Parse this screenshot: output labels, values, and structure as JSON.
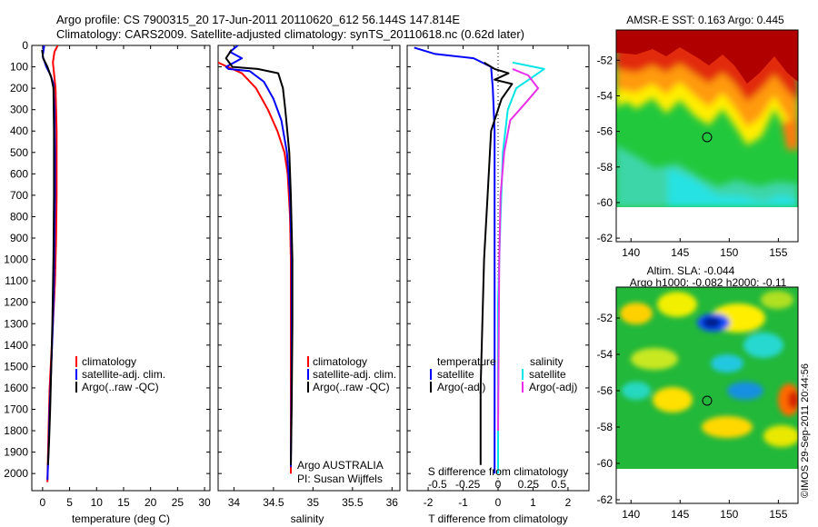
{
  "header": {
    "line1": "Argo profile: CS 7900315_20 17-Jun-2011 20110620_612 56.144S 147.814E",
    "line2": "Climatology: CARS2009. Satellite-adjusted climatology: synTS_20110618.nc (0.62d later)"
  },
  "side_credit": "©IMOS 29-Sep-2011 20:44:56",
  "colors": {
    "climatology": "#ff0000",
    "satellite": "#0000ff",
    "argo": "#000000",
    "sat_salinity": "#00e5e5",
    "argo_salinity": "#e830e8"
  },
  "chart_data": [
    {
      "id": "temperature",
      "type": "line",
      "xlabel": "temperature (deg C)",
      "ylabel": "",
      "xlim": [
        -2,
        31
      ],
      "ylim": [
        2080,
        0
      ],
      "xticks": [
        0,
        5,
        10,
        15,
        20,
        25,
        30
      ],
      "yticks": [
        0,
        100,
        200,
        300,
        400,
        500,
        600,
        700,
        800,
        900,
        1000,
        1100,
        1200,
        1300,
        1400,
        1500,
        1600,
        1700,
        1800,
        1900,
        2000
      ],
      "legend": {
        "placement": "lower-middle",
        "entries": [
          "climatology",
          "satellite-adj. clim.",
          "Argo(..raw -QC)"
        ]
      },
      "series": [
        {
          "name": "climatology",
          "color": "#ff0000",
          "x": [
            2.8,
            2.2,
            1.9,
            2.2,
            2.4,
            2.5,
            2.6,
            2.6,
            2.6,
            2.5,
            2.4,
            2.3,
            2.1,
            1.9,
            1.7,
            1.5,
            1.3,
            1.1,
            0.9
          ],
          "y": [
            0,
            30,
            80,
            150,
            200,
            300,
            400,
            500,
            700,
            900,
            1000,
            1100,
            1200,
            1300,
            1400,
            1500,
            1600,
            1800,
            2040
          ]
        },
        {
          "name": "satellite-adj. clim.",
          "color": "#0000ff",
          "x": [
            0.3,
            0.0,
            0.7,
            1.5,
            2.0,
            2.2,
            2.3,
            2.3,
            2.2,
            2.1,
            1.9,
            1.6,
            1.3,
            1.1,
            0.9
          ],
          "y": [
            0,
            50,
            100,
            140,
            180,
            300,
            500,
            700,
            900,
            1100,
            1300,
            1500,
            1700,
            1900,
            2030
          ]
        },
        {
          "name": "Argo(..raw -QC)",
          "color": "#000000",
          "x": [
            -0.1,
            0.1,
            0.9,
            1.6,
            2.0,
            2.1,
            2.1,
            2.0,
            1.8,
            1.6,
            1.4,
            1.2,
            1.0
          ],
          "y": [
            20,
            60,
            100,
            150,
            200,
            400,
            700,
            1000,
            1300,
            1500,
            1700,
            1850,
            1960
          ]
        }
      ]
    },
    {
      "id": "salinity",
      "type": "line",
      "xlabel": "salinity",
      "ylabel": "",
      "xlim": [
        33.8,
        36.1
      ],
      "ylim": [
        2080,
        0
      ],
      "xticks": [
        34,
        34.5,
        35,
        35.5,
        36
      ],
      "legend": {
        "placement": "lower-right",
        "entries": [
          "climatology",
          "satellite-adj. clim.",
          "Argo(..raw -QC)"
        ]
      },
      "annotation": [
        "Argo AUSTRALIA",
        "PI: Susan Wijffels"
      ],
      "series": [
        {
          "name": "climatology",
          "color": "#ff0000",
          "x": [
            33.8,
            33.92,
            34.1,
            34.28,
            34.43,
            34.55,
            34.64,
            34.68,
            34.71,
            34.72,
            34.72,
            34.72
          ],
          "y": [
            80,
            100,
            130,
            200,
            300,
            400,
            500,
            600,
            800,
            1000,
            1500,
            2000
          ]
        },
        {
          "name": "satellite-adj. clim.",
          "color": "#0000ff",
          "x": [
            34.05,
            33.95,
            34.1,
            33.9,
            33.93,
            34.2,
            34.38,
            34.5,
            34.6,
            34.67,
            34.71,
            34.73,
            34.73,
            34.72
          ],
          "y": [
            0,
            30,
            60,
            100,
            110,
            120,
            170,
            250,
            350,
            500,
            700,
            1000,
            1500,
            1970
          ]
        },
        {
          "name": "Argo(..raw -QC)",
          "color": "#000000",
          "x": [
            33.97,
            33.9,
            33.98,
            34.3,
            34.56,
            34.62,
            34.65,
            34.7,
            34.72,
            34.74,
            34.74,
            34.73,
            34.72
          ],
          "y": [
            20,
            60,
            100,
            110,
            130,
            200,
            300,
            500,
            700,
            1000,
            1300,
            1700,
            1960
          ]
        }
      ]
    },
    {
      "id": "differences",
      "type": "line",
      "xlabel": "T difference from climatology",
      "ylabel": "",
      "xlabel_top": "S difference from climatology",
      "xlim": [
        -2.6,
        2.6
      ],
      "ylim": [
        2080,
        0
      ],
      "xticks": [
        -2,
        -1,
        0,
        1,
        2
      ],
      "xticks_top": {
        "labels": [
          "-0.5",
          "-0.25",
          "0",
          "0.25",
          "0.5"
        ],
        "values": [
          -0.5,
          -0.25,
          0,
          0.25,
          0.5
        ]
      },
      "legend": {
        "placement": "lower-middle",
        "groups": [
          {
            "title": "temperature",
            "entries": [
              "satellite",
              "Argo(-adj)"
            ]
          },
          {
            "title": "salinity",
            "entries": [
              "satellite",
              "Argo(-adj)"
            ]
          }
        ]
      },
      "series": [
        {
          "name": "satellite",
          "group": "temperature",
          "color": "#0000ff",
          "x": [
            -2.4,
            -1.8,
            -0.7,
            -0.2,
            -0.15,
            -0.1,
            -0.1,
            -0.1,
            -0.1,
            -0.1
          ],
          "y": [
            10,
            40,
            60,
            100,
            200,
            400,
            700,
            1000,
            1500,
            2000
          ]
        },
        {
          "name": "Argo(-adj)",
          "group": "temperature",
          "color": "#000000",
          "x": [
            -0.4,
            -0.1,
            0.3,
            -0.1,
            0.4,
            0.1,
            -0.2,
            -0.3,
            -0.4,
            -0.45,
            -0.5,
            -0.5,
            -0.5
          ],
          "y": [
            80,
            110,
            130,
            160,
            180,
            250,
            400,
            700,
            1000,
            1300,
            1600,
            1800,
            1960
          ]
        },
        {
          "name": "satellite",
          "group": "salinity",
          "color": "#00e5e5",
          "x": [
            0.12,
            0.38,
            0.28,
            0.15,
            0.08,
            0.04,
            0.02,
            0.0,
            0.0
          ],
          "y": [
            80,
            110,
            150,
            200,
            300,
            500,
            800,
            1200,
            2000
          ]
        },
        {
          "name": "Argo(-adj)",
          "group": "salinity",
          "color": "#e830e8",
          "x": [
            0.12,
            0.25,
            0.33,
            0.24,
            0.1,
            0.05,
            0.02,
            0.01,
            0.0
          ],
          "y": [
            110,
            140,
            200,
            260,
            350,
            500,
            700,
            1000,
            1800
          ]
        }
      ]
    },
    {
      "id": "sst-map",
      "type": "heatmap",
      "title": "AMSR-E SST: 0.163 Argo: 0.445",
      "xlim": [
        138.5,
        157
      ],
      "ylim": [
        -62.2,
        -50.3
      ],
      "xticks": [
        140,
        145,
        150,
        155
      ],
      "yticks": [
        -52,
        -54,
        -56,
        -58,
        -60,
        -62
      ],
      "marker": {
        "lon": 147.814,
        "lat": -56.144
      }
    },
    {
      "id": "sla-map",
      "type": "heatmap",
      "title": [
        "Altim. SLA: -0.044",
        "Argo h1000: -0.082 h2000: -0.11"
      ],
      "xlim": [
        138.5,
        157
      ],
      "ylim": [
        -62.2,
        -50.3
      ],
      "xticks": [
        140,
        145,
        150,
        155
      ],
      "yticks": [
        -52,
        -54,
        -56,
        -58,
        -60,
        -62
      ],
      "marker": {
        "lon": 147.814,
        "lat": -56.144
      }
    }
  ]
}
